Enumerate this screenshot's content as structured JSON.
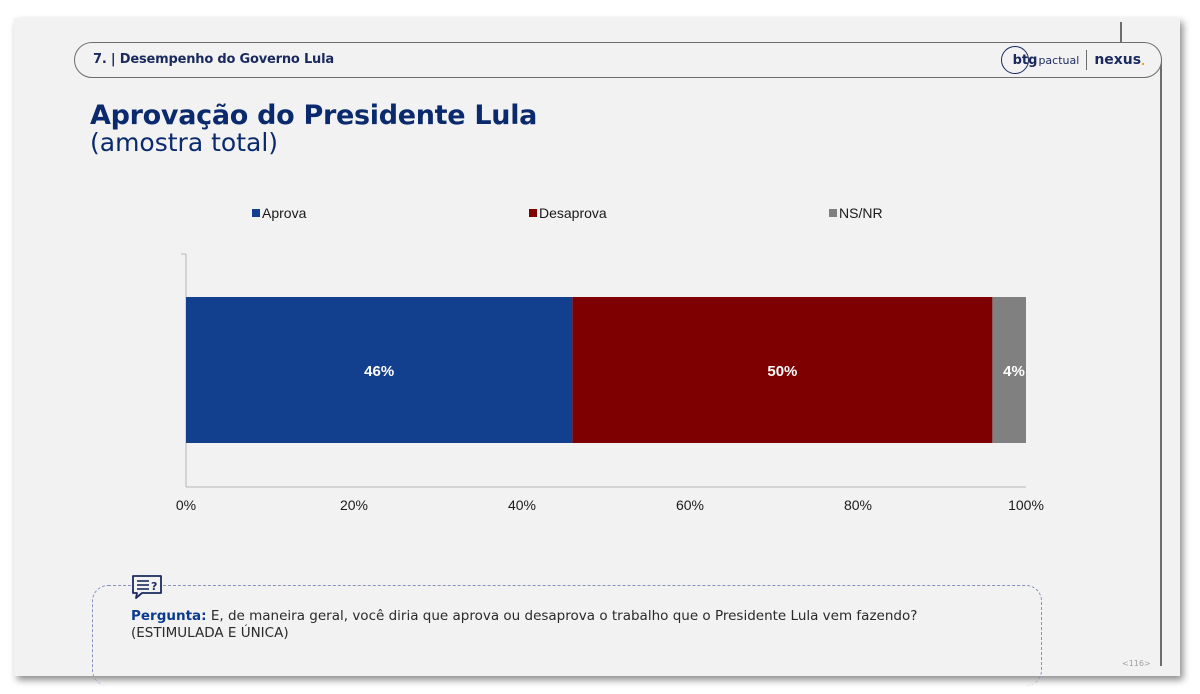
{
  "header": {
    "section": "7. | Desempenho do Governo Lula",
    "brand_btg": "btg",
    "brand_btg_sub": "pactual",
    "brand_nexus": "nexus",
    "brand_nexus_dot": "."
  },
  "title": "Aprovação do Presidente Lula",
  "subtitle": "(amostra total)",
  "chart_data": {
    "type": "bar",
    "orientation": "horizontal",
    "stacked": true,
    "categories": [
      ""
    ],
    "series": [
      {
        "name": "Aprova",
        "values": [
          46
        ],
        "label": "46%",
        "color": "#12408f"
      },
      {
        "name": "Desaprova",
        "values": [
          50
        ],
        "label": "50%",
        "color": "#7f0000"
      },
      {
        "name": "NS/NR",
        "values": [
          4
        ],
        "label": "4%",
        "color": "#808080"
      }
    ],
    "xlim": [
      0,
      100
    ],
    "xticks": [
      "0%",
      "20%",
      "40%",
      "60%",
      "80%",
      "100%"
    ],
    "legend_position": "top",
    "grid": false
  },
  "question": {
    "label": "Pergunta:",
    "text": " E, de maneira geral, você diria que aprova ou desaprova o trabalho que o Presidente Lula vem fazendo?",
    "note": "(ESTIMULADA E ÚNICA)"
  },
  "page_number": "<116>",
  "icons": {
    "question": "speech-bubble-question-icon"
  }
}
